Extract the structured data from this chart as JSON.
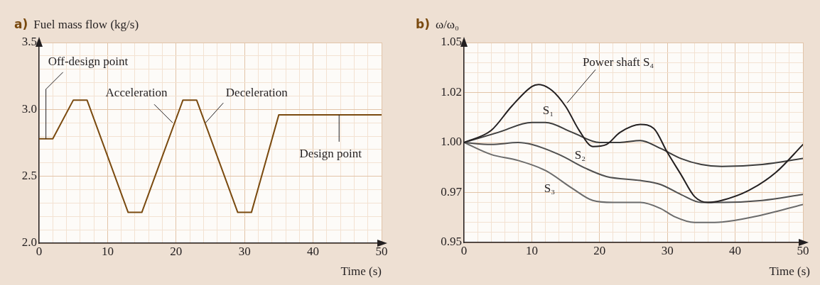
{
  "chart_data": [
    {
      "type": "line",
      "title": "a)",
      "ylabel": "Fuel mass flow (kg/s)",
      "xlabel": "Time (s)",
      "color": "#7a4a0f",
      "x": [
        0,
        2,
        5,
        7,
        13,
        15,
        21,
        23,
        29,
        31,
        35,
        50
      ],
      "values": [
        2.78,
        2.78,
        3.07,
        3.07,
        2.23,
        2.23,
        3.07,
        3.07,
        2.23,
        2.23,
        2.96,
        2.96
      ],
      "xlim": [
        0,
        50
      ],
      "ylim": [
        2.0,
        3.5
      ],
      "xticks": [
        0,
        {
          "value": 2,
          "label": null
        },
        {
          "value": 4,
          "label": null
        },
        {
          "value": 6,
          "label": null
        },
        {
          "value": 8,
          "label": null
        },
        10,
        {
          "value": 12,
          "label": null
        },
        {
          "value": 14,
          "label": null
        },
        {
          "value": 16,
          "label": null
        },
        {
          "value": 18,
          "label": null
        },
        20,
        {
          "value": 22,
          "label": null
        },
        {
          "value": 24,
          "label": null
        },
        {
          "value": 26,
          "label": null
        },
        {
          "value": 28,
          "label": null
        },
        30,
        {
          "value": 32,
          "label": null
        },
        {
          "value": 34,
          "label": null
        },
        {
          "value": 36,
          "label": null
        },
        {
          "value": 38,
          "label": null
        },
        40,
        {
          "value": 42,
          "label": null
        },
        {
          "value": 44,
          "label": null
        },
        {
          "value": 46,
          "label": null
        },
        {
          "value": 48,
          "label": null
        },
        50
      ],
      "yticks": [
        {
          "value": 2.0,
          "label": "2.0"
        },
        {
          "value": 2.1,
          "label": null
        },
        {
          "value": 2.2,
          "label": null
        },
        {
          "value": 2.3,
          "label": null
        },
        {
          "value": 2.4,
          "label": null
        },
        2.5,
        {
          "value": 2.6,
          "label": null
        },
        {
          "value": 2.7,
          "label": null
        },
        {
          "value": 2.8,
          "label": null
        },
        {
          "value": 2.9,
          "label": null
        },
        {
          "value": 3.0,
          "label": "3.0"
        },
        {
          "value": 3.1,
          "label": null
        },
        {
          "value": 3.2,
          "label": null
        },
        {
          "value": 3.3,
          "label": null
        },
        {
          "value": 3.4,
          "label": null
        },
        3.5
      ],
      "grid": true,
      "line_style": "solid",
      "annotations": [
        {
          "text": "Off-design point",
          "x": 1,
          "y": 2.78
        },
        {
          "text": "Acceleration",
          "x": 19.5,
          "y": 2.9
        },
        {
          "text": "Deceleration",
          "x": 24.3,
          "y": 2.9
        },
        {
          "text": "Design point",
          "x": 43.8,
          "y": 2.96
        }
      ]
    },
    {
      "type": "line",
      "title": "b)",
      "ylabel": "ω/ω₀",
      "xlabel": "Time (s)",
      "series": [
        {
          "name": "Power shaft S₄",
          "color": "#231f20",
          "x": [
            0,
            4,
            7,
            10,
            11,
            13,
            15,
            17,
            19,
            21,
            23,
            26,
            28,
            30,
            32,
            34,
            36,
            38,
            42,
            46,
            50
          ],
          "values": [
            1.0,
            1.006,
            1.018,
            1.028,
            1.029,
            1.026,
            1.018,
            1.006,
            0.998,
            0.999,
            1.005,
            1.009,
            1.007,
            0.995,
            0.984,
            0.973,
            0.97,
            0.971,
            0.976,
            0.985,
            0.999
          ]
        },
        {
          "name": "S₁",
          "color": "#3d3d3d",
          "x": [
            0,
            5,
            10,
            12,
            16,
            20,
            23,
            26,
            29,
            32,
            35,
            38,
            44,
            50
          ],
          "values": [
            1.0,
            1.005,
            1.01,
            1.01,
            1.005,
            1.0,
            1.0,
            1.001,
            0.997,
            0.992,
            0.989,
            0.988,
            0.989,
            0.992
          ]
        },
        {
          "name": "S₂",
          "color": "#505050",
          "x": [
            0,
            4,
            8,
            10,
            14,
            18,
            21,
            26,
            29,
            32,
            35,
            38,
            44,
            50
          ],
          "values": [
            1.0,
            0.999,
            1.0,
            0.999,
            0.994,
            0.987,
            0.983,
            0.981,
            0.979,
            0.974,
            0.97,
            0.97,
            0.971,
            0.974
          ]
        },
        {
          "name": "S₃",
          "color": "#6b6b6b",
          "x": [
            0,
            4,
            8,
            12,
            16,
            19,
            22,
            26,
            29,
            31,
            34,
            37,
            43,
            50
          ],
          "values": [
            1.0,
            0.994,
            0.991,
            0.986,
            0.977,
            0.971,
            0.97,
            0.97,
            0.967,
            0.963,
            0.96,
            0.96,
            0.963,
            0.969
          ]
        }
      ],
      "xlim": [
        0,
        50
      ],
      "ylim": [
        0.95,
        1.05
      ],
      "xticks": [
        0,
        {
          "value": 2,
          "label": null
        },
        {
          "value": 4,
          "label": null
        },
        {
          "value": 6,
          "label": null
        },
        {
          "value": 8,
          "label": null
        },
        10,
        {
          "value": 12,
          "label": null
        },
        {
          "value": 14,
          "label": null
        },
        {
          "value": 16,
          "label": null
        },
        {
          "value": 18,
          "label": null
        },
        20,
        {
          "value": 22,
          "label": null
        },
        {
          "value": 24,
          "label": null
        },
        {
          "value": 26,
          "label": null
        },
        {
          "value": 28,
          "label": null
        },
        30,
        {
          "value": 32,
          "label": null
        },
        {
          "value": 34,
          "label": null
        },
        {
          "value": 36,
          "label": null
        },
        {
          "value": 38,
          "label": null
        },
        40,
        {
          "value": 42,
          "label": null
        },
        {
          "value": 44,
          "label": null
        },
        {
          "value": 46,
          "label": null
        },
        {
          "value": 48,
          "label": null
        },
        50
      ],
      "yticks": [
        0.95,
        {
          "value": 0.955,
          "label": null
        },
        {
          "value": 0.96,
          "label": null
        },
        {
          "value": 0.965,
          "label": null
        },
        {
          "value": 0.97,
          "label": null
        },
        {
          "value": 0.975,
          "label": "0.97"
        },
        {
          "value": 0.98,
          "label": null
        },
        {
          "value": 0.985,
          "label": null
        },
        {
          "value": 0.99,
          "label": null
        },
        {
          "value": 0.995,
          "label": null
        },
        {
          "value": 1.0,
          "label": "1.00"
        },
        {
          "value": 1.005,
          "label": null
        },
        {
          "value": 1.01,
          "label": null
        },
        {
          "value": 1.015,
          "label": null
        },
        {
          "value": 1.02,
          "label": null
        },
        {
          "value": 1.025,
          "label": "1.02"
        },
        {
          "value": 1.03,
          "label": null
        },
        {
          "value": 1.035,
          "label": null
        },
        {
          "value": 1.04,
          "label": null
        },
        {
          "value": 1.045,
          "label": null
        },
        1.05
      ],
      "grid": true,
      "line_style": "solid"
    }
  ]
}
